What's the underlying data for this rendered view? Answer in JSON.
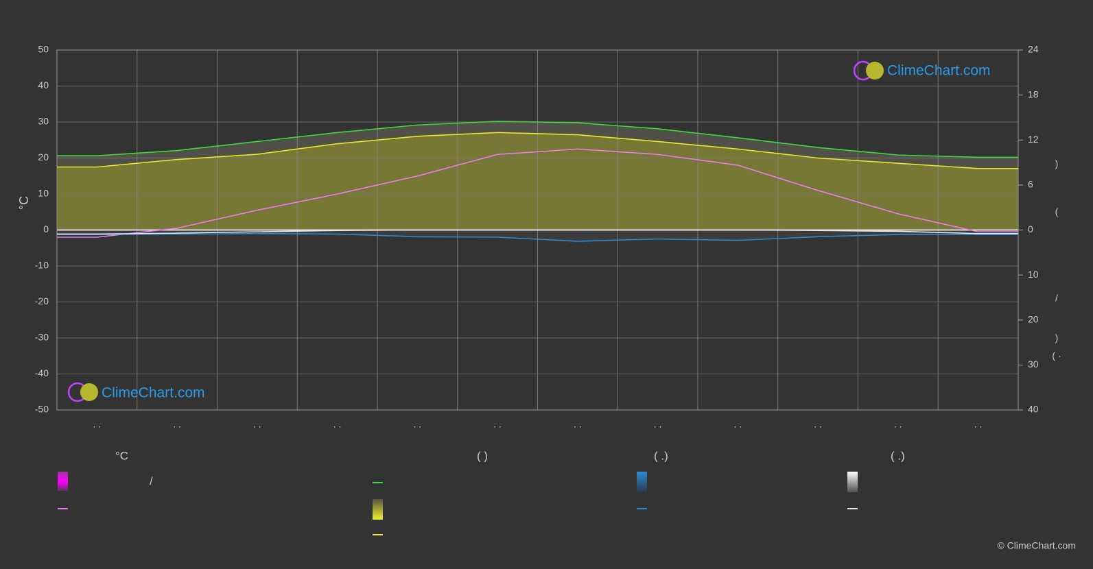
{
  "chart_data": {
    "type": "line",
    "categories": [
      ". .",
      ". .",
      ". .",
      ". .",
      ". .",
      ". .",
      ". .",
      ". .",
      ". .",
      ". .",
      ". .",
      ". ."
    ],
    "ylabel": "°C",
    "ylim": [
      -50,
      50
    ],
    "yticks": [
      -50,
      -40,
      -30,
      -20,
      -10,
      0,
      10,
      20,
      30,
      40,
      50
    ],
    "y2lim": [
      0,
      24
    ],
    "y2ticks": [
      0,
      6,
      12,
      18,
      24
    ],
    "y3lim": [
      0,
      40
    ],
    "y3ticks": [
      10,
      20,
      30,
      40
    ],
    "y2label": [
      ")",
      "(",
      "/",
      ")",
      "( ·"
    ],
    "grid": true,
    "series": [
      {
        "color": "#f07cf0",
        "axis": "y",
        "values": [
          -2,
          0.5,
          5.5,
          10,
          15,
          21,
          22.5,
          21,
          18,
          11,
          4.5,
          -0.5
        ]
      },
      {
        "color": "#3fd83f",
        "axis": "y2",
        "fill": "#56564c",
        "values": [
          9.9,
          10.6,
          11.8,
          13.0,
          14.0,
          14.5,
          14.3,
          13.5,
          12.3,
          11.0,
          10.0,
          9.7
        ]
      },
      {
        "color": "#e8e82c",
        "axis": "y2",
        "fill": "#7f7f34",
        "values": [
          8.4,
          9.4,
          10.1,
          11.5,
          12.5,
          13.0,
          12.7,
          11.8,
          10.8,
          9.6,
          8.9,
          8.2
        ]
      },
      {
        "color": "#2a8ad6",
        "axis": "y3",
        "fill": "#3e3e3e",
        "values": [
          1.0,
          0.9,
          0.8,
          0.9,
          1.5,
          1.6,
          2.5,
          2.0,
          2.3,
          1.5,
          1.0,
          1.0
        ]
      },
      {
        "color": "#e6e6e6",
        "axis": "y3",
        "values": [
          0.9,
          0.7,
          0.4,
          0.1,
          0,
          0,
          0,
          0,
          0,
          0.1,
          0.3,
          0.8
        ]
      }
    ],
    "legend": {
      "headers": [
        "°C",
        "(          )",
        "(   .)",
        "(   .)"
      ],
      "notes": [
        "/"
      ]
    },
    "logo": "ClimeChart.com",
    "copyright": "© ClimeChart.com"
  }
}
